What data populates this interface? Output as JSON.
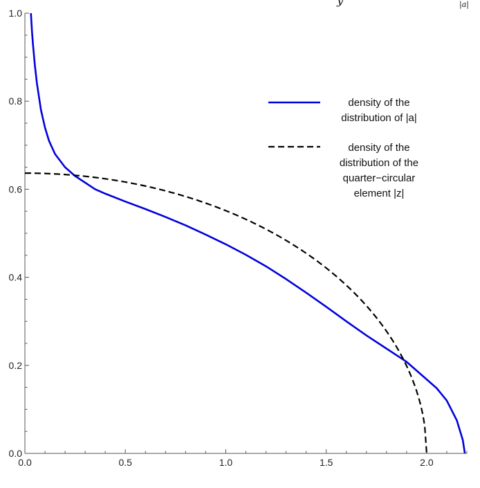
{
  "chart_data": {
    "type": "line",
    "title_fragment": "y",
    "title_fragment_right": "|a|",
    "xlim": [
      0.0,
      2.2
    ],
    "ylim": [
      0.0,
      1.0
    ],
    "x_ticks": [
      {
        "value": 0.0,
        "label": "0.0"
      },
      {
        "value": 0.5,
        "label": "0.5"
      },
      {
        "value": 1.0,
        "label": "1.0"
      },
      {
        "value": 1.5,
        "label": "1.5"
      },
      {
        "value": 2.0,
        "label": "2.0"
      }
    ],
    "y_ticks": [
      {
        "value": 0.0,
        "label": "0.0"
      },
      {
        "value": 0.2,
        "label": "0.2"
      },
      {
        "value": 0.4,
        "label": "0.4"
      },
      {
        "value": 0.6,
        "label": "0.6"
      },
      {
        "value": 0.8,
        "label": "0.8"
      },
      {
        "value": 1.0,
        "label": "1.0"
      }
    ],
    "grid": false,
    "legend_position": "top-right",
    "series": [
      {
        "name": "density of the distribution of |a|",
        "legend_lines": [
          "density of the",
          "distribution of |a|"
        ],
        "color": "#0000dd",
        "style": "solid",
        "x": [
          0.03,
          0.035,
          0.04,
          0.05,
          0.06,
          0.08,
          0.1,
          0.12,
          0.15,
          0.2,
          0.25,
          0.3,
          0.35,
          0.4,
          0.5,
          0.6,
          0.7,
          0.8,
          0.9,
          1.0,
          1.1,
          1.2,
          1.3,
          1.4,
          1.5,
          1.6,
          1.7,
          1.8,
          1.9,
          2.0,
          2.05,
          2.1,
          2.15,
          2.18,
          2.19
        ],
        "y": [
          1.0,
          0.96,
          0.93,
          0.88,
          0.84,
          0.78,
          0.74,
          0.71,
          0.68,
          0.65,
          0.63,
          0.615,
          0.6,
          0.59,
          0.572,
          0.555,
          0.537,
          0.518,
          0.497,
          0.475,
          0.451,
          0.425,
          0.396,
          0.365,
          0.333,
          0.3,
          0.268,
          0.238,
          0.208,
          0.168,
          0.148,
          0.12,
          0.075,
          0.03,
          0.0
        ]
      },
      {
        "name": "density of the distribution of the quarter-circular element |z|",
        "legend_lines": [
          "density of the",
          "distribution of the",
          "quarter−circular",
          "element |z|"
        ],
        "color": "#000000",
        "style": "dashed",
        "function": "quarter-circle: y = sqrt(4 - x^2) / pi, 0 <= x <= 2"
      }
    ]
  }
}
